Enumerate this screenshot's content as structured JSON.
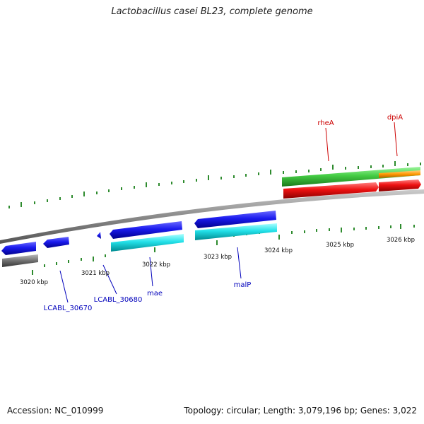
{
  "title": "Lactobacillus casei BL23, complete genome",
  "footer": {
    "accession": "Accession: NC_010999",
    "summary": "Topology: circular; Length: 3,079,196 bp; Genes: 3,022"
  },
  "colors": {
    "backbone": "#8a8a8a",
    "tick": "#2e8b2e",
    "scale_text": "#111111",
    "forward_label": "#cc0000",
    "reverse_label": "#0000bb",
    "gene_blue": "#1a1aee",
    "cds_cyan": "#22e0e8",
    "gene_green": "#44cc44",
    "cds_red": "#ee1111",
    "orange": "#ff9900",
    "gray": "#707070"
  },
  "scale_labels": [
    "3020 kbp",
    "3021 kbp",
    "3022 kbp",
    "3023 kbp",
    "3024 kbp",
    "3025 kbp",
    "3026 kbp"
  ],
  "gene_labels": [
    "rheA",
    "dpiA",
    "LCABL_30670",
    "LCABL_30680",
    "mae",
    "malP"
  ]
}
